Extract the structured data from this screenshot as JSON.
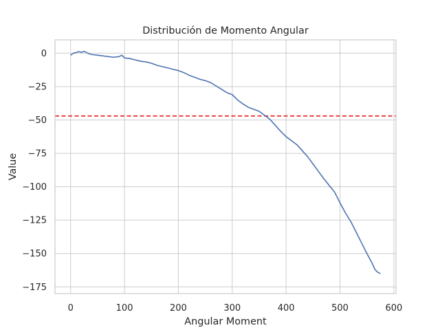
{
  "chart_data": {
    "type": "line",
    "title": "Distribución de Momento Angular",
    "xlabel": "Angular Moment",
    "ylabel": "Value",
    "xlim": [
      -29,
      604
    ],
    "ylim": [
      -180,
      10
    ],
    "x_ticks": [
      0,
      100,
      200,
      300,
      400,
      500,
      600
    ],
    "y_ticks": [
      0,
      -25,
      -50,
      -75,
      -100,
      -125,
      -150,
      -175
    ],
    "x_tick_labels": [
      "0",
      "100",
      "200",
      "300",
      "400",
      "500",
      "600"
    ],
    "y_tick_labels": [
      "0",
      "−25",
      "−50",
      "−75",
      "−100",
      "−125",
      "−150",
      "−175"
    ],
    "grid": true,
    "series": [
      {
        "color": "#4c72b0",
        "points": [
          [
            0,
            -1.5
          ],
          [
            5,
            0
          ],
          [
            10,
            0.5
          ],
          [
            15,
            1.2
          ],
          [
            20,
            0.7
          ],
          [
            25,
            1.4
          ],
          [
            30,
            0.5
          ],
          [
            35,
            -0.5
          ],
          [
            40,
            -1
          ],
          [
            50,
            -1.5
          ],
          [
            60,
            -2
          ],
          [
            70,
            -2.5
          ],
          [
            80,
            -3
          ],
          [
            90,
            -2.5
          ],
          [
            95,
            -1.5
          ],
          [
            100,
            -3.5
          ],
          [
            110,
            -4
          ],
          [
            120,
            -5
          ],
          [
            130,
            -6
          ],
          [
            140,
            -6.5
          ],
          [
            150,
            -7.5
          ],
          [
            160,
            -9
          ],
          [
            170,
            -10
          ],
          [
            180,
            -11
          ],
          [
            190,
            -12
          ],
          [
            200,
            -13
          ],
          [
            210,
            -14.5
          ],
          [
            220,
            -16.5
          ],
          [
            230,
            -18
          ],
          [
            240,
            -19.5
          ],
          [
            250,
            -20.5
          ],
          [
            260,
            -22
          ],
          [
            270,
            -24.5
          ],
          [
            280,
            -27
          ],
          [
            290,
            -29.5
          ],
          [
            300,
            -31
          ],
          [
            310,
            -35
          ],
          [
            320,
            -38
          ],
          [
            330,
            -40.5
          ],
          [
            340,
            -42
          ],
          [
            350,
            -43.5
          ],
          [
            360,
            -46.5
          ],
          [
            370,
            -49.5
          ],
          [
            380,
            -54
          ],
          [
            390,
            -58.5
          ],
          [
            400,
            -62.5
          ],
          [
            410,
            -65.5
          ],
          [
            420,
            -68.5
          ],
          [
            430,
            -73
          ],
          [
            440,
            -77.5
          ],
          [
            450,
            -83
          ],
          [
            460,
            -88.5
          ],
          [
            470,
            -94
          ],
          [
            480,
            -99
          ],
          [
            490,
            -104
          ],
          [
            500,
            -112
          ],
          [
            510,
            -119.5
          ],
          [
            520,
            -126
          ],
          [
            530,
            -134
          ],
          [
            540,
            -142
          ],
          [
            550,
            -150
          ],
          [
            560,
            -157.5
          ],
          [
            565,
            -162
          ],
          [
            570,
            -164
          ],
          [
            575,
            -165
          ]
        ]
      }
    ],
    "hlines": [
      {
        "y": -47,
        "color": "#e41a1c",
        "style": "dashed"
      }
    ]
  }
}
